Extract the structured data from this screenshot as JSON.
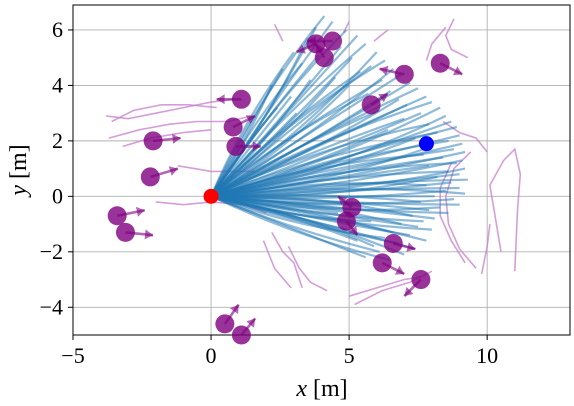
{
  "chart_data": {
    "type": "scatter",
    "xlabel": "x [m]",
    "ylabel": "y [m]",
    "xlim": [
      -5,
      13
    ],
    "ylim": [
      -5,
      6.9
    ],
    "x_ticks": [
      -5,
      0,
      5,
      10
    ],
    "y_ticks": [
      -4,
      -2,
      0,
      2,
      4,
      6
    ],
    "x_tick_labels": [
      "−5",
      "0",
      "5",
      "10"
    ],
    "y_tick_labels": [
      "−4",
      "−2",
      "0",
      "2",
      "4",
      "6"
    ],
    "grid": true,
    "start_point": {
      "x": 0.0,
      "y": 0.0,
      "color": "#ff0000"
    },
    "goal_point": {
      "x": 7.8,
      "y": 1.9,
      "color": "#0000ff"
    },
    "candidate_trajectory_color": "#1f77b4",
    "candidate_trajectory_endpoints": [
      [
        4.1,
        6.5
      ],
      [
        4.4,
        6.3
      ],
      [
        3.8,
        6.1
      ],
      [
        4.9,
        6.0
      ],
      [
        5.3,
        5.8
      ],
      [
        3.5,
        5.7
      ],
      [
        5.6,
        5.5
      ],
      [
        4.7,
        5.4
      ],
      [
        6.0,
        5.2
      ],
      [
        3.9,
        5.1
      ],
      [
        5.1,
        5.0
      ],
      [
        6.3,
        4.9
      ],
      [
        5.8,
        4.7
      ],
      [
        6.6,
        4.6
      ],
      [
        5.4,
        4.5
      ],
      [
        6.9,
        4.4
      ],
      [
        4.5,
        4.3
      ],
      [
        6.2,
        4.2
      ],
      [
        7.2,
        4.1
      ],
      [
        5.0,
        4.0
      ],
      [
        7.5,
        3.9
      ],
      [
        6.5,
        3.8
      ],
      [
        5.7,
        3.7
      ],
      [
        7.8,
        3.6
      ],
      [
        6.8,
        3.5
      ],
      [
        8.0,
        3.4
      ],
      [
        7.1,
        3.3
      ],
      [
        8.3,
        3.2
      ],
      [
        6.1,
        3.1
      ],
      [
        7.6,
        3.0
      ],
      [
        8.5,
        2.9
      ],
      [
        7.0,
        2.8
      ],
      [
        8.7,
        2.7
      ],
      [
        7.9,
        2.6
      ],
      [
        8.9,
        2.5
      ],
      [
        6.4,
        2.4
      ],
      [
        8.2,
        2.3
      ],
      [
        9.0,
        2.2
      ],
      [
        7.4,
        2.1
      ],
      [
        8.6,
        2.0
      ],
      [
        9.1,
        1.9
      ],
      [
        8.0,
        1.8
      ],
      [
        8.8,
        1.7
      ],
      [
        9.2,
        1.6
      ],
      [
        7.7,
        1.5
      ],
      [
        8.4,
        1.4
      ],
      [
        9.1,
        1.3
      ],
      [
        8.9,
        1.2
      ],
      [
        7.9,
        1.1
      ],
      [
        9.2,
        1.0
      ],
      [
        8.6,
        0.9
      ],
      [
        9.0,
        0.8
      ],
      [
        8.2,
        0.7
      ],
      [
        9.3,
        0.6
      ],
      [
        8.7,
        0.5
      ],
      [
        7.8,
        0.4
      ],
      [
        9.0,
        0.3
      ],
      [
        8.5,
        0.2
      ],
      [
        9.2,
        0.1
      ],
      [
        8.1,
        0.0
      ],
      [
        8.8,
        -0.1
      ],
      [
        7.6,
        -0.2
      ],
      [
        9.0,
        -0.3
      ],
      [
        8.3,
        -0.4
      ],
      [
        7.9,
        -0.5
      ],
      [
        8.6,
        -0.6
      ],
      [
        7.3,
        -0.7
      ],
      [
        8.1,
        -0.8
      ],
      [
        7.7,
        -0.9
      ],
      [
        6.9,
        -1.0
      ],
      [
        7.5,
        -1.1
      ],
      [
        8.0,
        -1.2
      ],
      [
        6.6,
        -1.3
      ],
      [
        7.2,
        -1.4
      ],
      [
        6.3,
        -1.5
      ],
      [
        7.8,
        -1.6
      ],
      [
        6.8,
        -1.7
      ],
      [
        5.9,
        -1.8
      ],
      [
        7.4,
        -1.9
      ],
      [
        6.1,
        -2.0
      ],
      [
        7.0,
        -2.1
      ],
      [
        5.6,
        -2.2
      ],
      [
        6.5,
        -2.3
      ],
      [
        5.3,
        -1.6
      ],
      [
        4.9,
        -1.2
      ],
      [
        5.8,
        -0.9
      ],
      [
        4.6,
        -0.6
      ],
      [
        5.2,
        -0.3
      ],
      [
        3.0,
        5.2
      ],
      [
        2.6,
        4.6
      ],
      [
        2.2,
        4.0
      ],
      [
        3.3,
        4.8
      ],
      [
        2.9,
        3.6
      ],
      [
        3.6,
        4.2
      ],
      [
        2.4,
        3.2
      ],
      [
        3.1,
        3.0
      ]
    ],
    "pedestrian_paths_color": "#c77dcc",
    "pedestrian_paths": [
      [
        [
          -3.8,
          2.9
        ],
        [
          -3.0,
          2.8
        ],
        [
          -2.0,
          3.0
        ],
        [
          -1.0,
          3.2
        ],
        [
          0.0,
          3.4
        ],
        [
          0.8,
          3.5
        ]
      ],
      [
        [
          -3.6,
          2.7
        ],
        [
          -2.8,
          3.1
        ],
        [
          -1.8,
          3.3
        ],
        [
          -0.8,
          3.3
        ],
        [
          0.2,
          3.2
        ]
      ],
      [
        [
          -3.7,
          2.1
        ],
        [
          -2.6,
          2.4
        ],
        [
          -1.5,
          2.6
        ],
        [
          -0.5,
          2.7
        ],
        [
          0.6,
          2.7
        ],
        [
          1.5,
          2.9
        ]
      ],
      [
        [
          -3.2,
          1.8
        ],
        [
          -2.2,
          2.1
        ],
        [
          -1.0,
          2.3
        ],
        [
          0.0,
          2.4
        ]
      ],
      [
        [
          -1.2,
          1.1
        ],
        [
          -0.6,
          1.0
        ],
        [
          0.0,
          0.9
        ],
        [
          0.8,
          0.9
        ],
        [
          1.6,
          0.9
        ]
      ],
      [
        [
          -2.0,
          -0.2
        ],
        [
          -1.0,
          -0.3
        ],
        [
          0.0,
          -0.2
        ],
        [
          1.2,
          -0.3
        ],
        [
          2.0,
          -0.6
        ]
      ],
      [
        [
          2.2,
          -1.3
        ],
        [
          2.6,
          -2.0
        ],
        [
          3.0,
          -2.4
        ],
        [
          3.3,
          -3.3
        ]
      ],
      [
        [
          2.8,
          -1.8
        ],
        [
          3.2,
          -2.6
        ],
        [
          3.6,
          -3.1
        ],
        [
          4.2,
          -3.4
        ]
      ],
      [
        [
          1.9,
          -1.6
        ],
        [
          2.3,
          -2.6
        ],
        [
          2.9,
          -3.3
        ]
      ],
      [
        [
          5.2,
          -3.9
        ],
        [
          6.2,
          -3.4
        ],
        [
          7.2,
          -3.1
        ],
        [
          8.0,
          -2.7
        ]
      ],
      [
        [
          5.0,
          -3.6
        ],
        [
          6.0,
          -3.3
        ],
        [
          7.0,
          -3.0
        ],
        [
          7.6,
          -2.9
        ]
      ],
      [
        [
          9.6,
          -2.6
        ],
        [
          9.0,
          -1.9
        ],
        [
          8.6,
          -1.0
        ],
        [
          8.5,
          0.0
        ],
        [
          8.8,
          1.0
        ],
        [
          9.4,
          1.6
        ]
      ],
      [
        [
          9.2,
          -2.4
        ],
        [
          8.7,
          -1.6
        ],
        [
          8.3,
          -0.7
        ],
        [
          8.3,
          0.3
        ],
        [
          8.7,
          1.2
        ]
      ],
      [
        [
          10.5,
          -2.0
        ],
        [
          10.3,
          -0.8
        ],
        [
          10.1,
          0.4
        ],
        [
          10.6,
          1.3
        ],
        [
          11.0,
          1.7
        ],
        [
          11.2,
          0.8
        ],
        [
          11.1,
          -0.5
        ],
        [
          11.0,
          -2.7
        ]
      ],
      [
        [
          9.8,
          -2.8
        ],
        [
          10.0,
          -1.8
        ],
        [
          10.1,
          -1.0
        ]
      ],
      [
        [
          8.8,
          6.4
        ],
        [
          8.5,
          5.8
        ],
        [
          8.7,
          5.3
        ],
        [
          9.3,
          5.0
        ]
      ],
      [
        [
          8.5,
          6.1
        ],
        [
          8.0,
          5.5
        ],
        [
          7.8,
          4.9
        ]
      ],
      [
        [
          6.4,
          6.0
        ],
        [
          5.9,
          5.6
        ]
      ],
      [
        [
          5.0,
          6.3
        ],
        [
          4.8,
          5.9
        ]
      ],
      [
        [
          8.4,
          2.7
        ],
        [
          9.0,
          2.3
        ],
        [
          9.6,
          2.1
        ],
        [
          10.0,
          1.6
        ]
      ],
      [
        [
          2.3,
          6.2
        ],
        [
          2.6,
          5.6
        ]
      ]
    ],
    "pedestrian_color": "#800080",
    "pedestrians": [
      {
        "x": 4.4,
        "y": 5.6,
        "vx": -0.9,
        "vy": 0.0
      },
      {
        "x": 3.8,
        "y": 5.5,
        "vx": -0.7,
        "vy": -0.3
      },
      {
        "x": 4.1,
        "y": 5.0,
        "vx": -0.3,
        "vy": 0.5
      },
      {
        "x": 7.0,
        "y": 4.4,
        "vx": -0.9,
        "vy": 0.2
      },
      {
        "x": 8.3,
        "y": 4.8,
        "vx": 0.8,
        "vy": -0.4
      },
      {
        "x": 5.8,
        "y": 3.3,
        "vx": 0.6,
        "vy": 0.4
      },
      {
        "x": 1.1,
        "y": 3.5,
        "vx": -0.9,
        "vy": 0.0
      },
      {
        "x": 0.8,
        "y": 2.5,
        "vx": 0.8,
        "vy": 0.4
      },
      {
        "x": 0.9,
        "y": 1.8,
        "vx": 0.9,
        "vy": 0.0
      },
      {
        "x": -2.1,
        "y": 2.0,
        "vx": 1.0,
        "vy": 0.1
      },
      {
        "x": -2.2,
        "y": 0.7,
        "vx": 1.0,
        "vy": 0.3
      },
      {
        "x": -3.4,
        "y": -0.7,
        "vx": 1.0,
        "vy": 0.2
      },
      {
        "x": -3.1,
        "y": -1.3,
        "vx": 1.0,
        "vy": -0.1
      },
      {
        "x": 5.1,
        "y": -0.4,
        "vx": -0.5,
        "vy": 0.4
      },
      {
        "x": 4.9,
        "y": -0.9,
        "vx": 0.4,
        "vy": -0.5
      },
      {
        "x": 6.6,
        "y": -1.7,
        "vx": 0.8,
        "vy": -0.2
      },
      {
        "x": 6.2,
        "y": -2.4,
        "vx": 0.8,
        "vy": -0.4
      },
      {
        "x": 7.6,
        "y": -3.0,
        "vx": -0.6,
        "vy": -0.6
      },
      {
        "x": 0.5,
        "y": -4.6,
        "vx": 0.5,
        "vy": 0.7
      },
      {
        "x": 1.1,
        "y": -5.0,
        "vx": 0.5,
        "vy": 0.6
      }
    ]
  }
}
